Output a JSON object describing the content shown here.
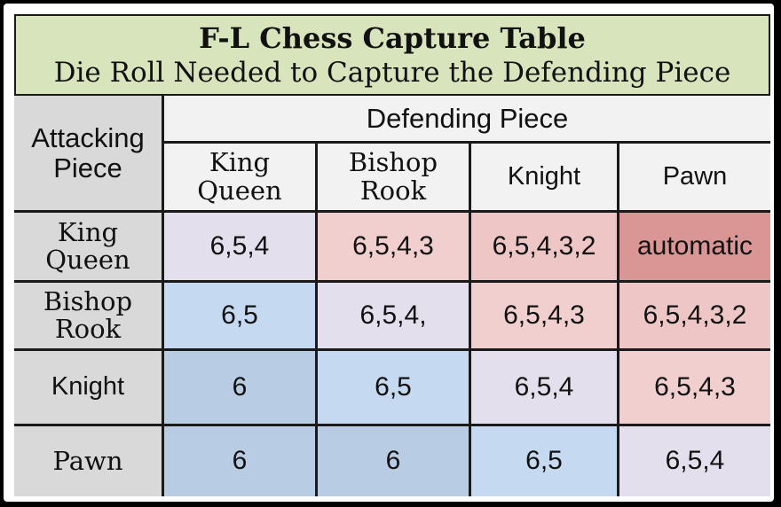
{
  "title": "F-L Chess Capture Table",
  "subtitle": "Die Roll Needed to Capture the Defending Piece",
  "attacking_header": [
    "Attacking",
    "Piece"
  ],
  "defending_header": "Defending Piece",
  "columns": [
    {
      "lines": [
        "King",
        "Queen"
      ]
    },
    {
      "lines": [
        "Bishop",
        "Rook"
      ]
    },
    {
      "lines": [
        "Knight"
      ]
    },
    {
      "lines": [
        "Pawn"
      ]
    }
  ],
  "rows": [
    {
      "lines": [
        "King",
        "Queen"
      ],
      "cells": [
        "6,5,4",
        "6,5,4,3",
        "6,5,4,3,2",
        "automatic"
      ]
    },
    {
      "lines": [
        "Bishop",
        "Rook"
      ],
      "cells": [
        "6,5",
        "6,5,4,",
        "6,5,4,3",
        "6,5,4,3,2"
      ]
    },
    {
      "lines": [
        "Knight"
      ],
      "cells": [
        "6",
        "6,5",
        "6,5,4",
        "6,5,4,3"
      ]
    },
    {
      "lines": [
        "Pawn"
      ],
      "cells": [
        "6",
        "6",
        "6,5",
        "6,5,4"
      ]
    }
  ],
  "colors": {
    "title_bg": "#d7e4bc",
    "header_bg": "#f2f2f2",
    "row_header_bg": "#d9d9d9",
    "cell_bg": [
      [
        "#e4dfec",
        "#f2cfcf",
        "#eec6c6",
        "#da9694"
      ],
      [
        "#c5d9f1",
        "#e4dfec",
        "#f2cfcf",
        "#eec6c6"
      ],
      [
        "#b8cce4",
        "#c5d9f1",
        "#e4dfec",
        "#f2cfcf"
      ],
      [
        "#b8cce4",
        "#b8cce4",
        "#c5d9f1",
        "#e4dfec"
      ]
    ]
  }
}
